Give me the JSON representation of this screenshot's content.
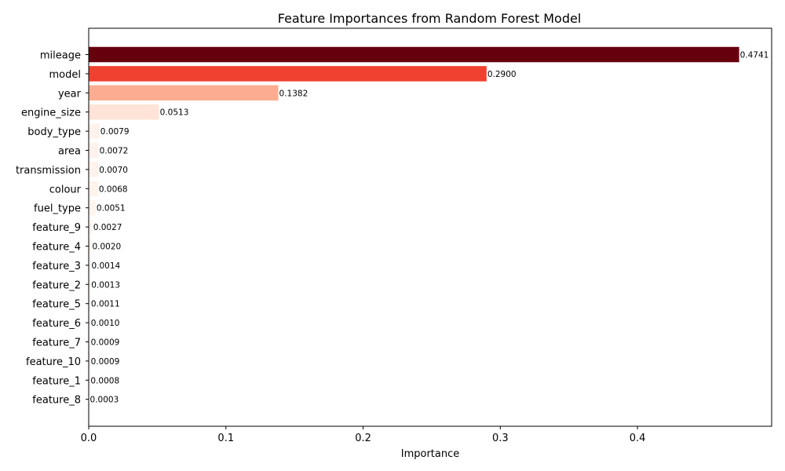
{
  "chart_data": {
    "type": "bar",
    "orientation": "horizontal",
    "title": "Feature Importances from Random Forest Model",
    "xlabel": "Importance",
    "ylabel": "",
    "xlim": [
      0,
      0.4978
    ],
    "xticks": [
      0.0,
      0.1,
      0.2,
      0.3,
      0.4
    ],
    "xtick_labels": [
      "0.0",
      "0.1",
      "0.2",
      "0.3",
      "0.4"
    ],
    "grid": false,
    "categories": [
      "mileage",
      "model",
      "year",
      "engine_size",
      "body_type",
      "area",
      "transmission",
      "colour",
      "fuel_type",
      "feature_9",
      "feature_4",
      "feature_3",
      "feature_2",
      "feature_5",
      "feature_6",
      "feature_7",
      "feature_10",
      "feature_1",
      "feature_8"
    ],
    "values": [
      0.4741,
      0.29,
      0.1382,
      0.0513,
      0.0079,
      0.0072,
      0.007,
      0.0068,
      0.0051,
      0.0027,
      0.002,
      0.0014,
      0.0013,
      0.0011,
      0.001,
      0.0009,
      0.0009,
      0.0008,
      0.0003
    ],
    "value_labels": [
      "0.4741",
      "0.2900",
      "0.1382",
      "0.0513",
      "0.0079",
      "0.0072",
      "0.0070",
      "0.0068",
      "0.0051",
      "0.0027",
      "0.0020",
      "0.0014",
      "0.0013",
      "0.0011",
      "0.0010",
      "0.0009",
      "0.0009",
      "0.0008",
      "0.0003"
    ],
    "colormap": "Reds"
  }
}
